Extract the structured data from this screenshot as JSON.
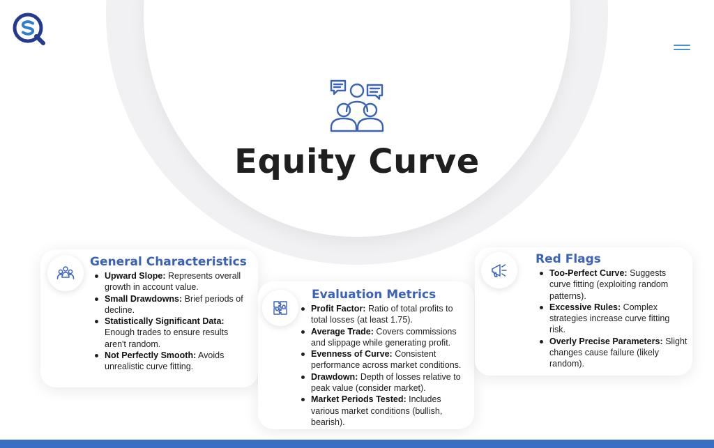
{
  "page": {
    "title": "Equity Curve",
    "accent_color": "#3a63b6",
    "footer_color": "#3a6fc4"
  },
  "header": {
    "logo": "brand-logo-icon",
    "menu": "hamburger-menu-icon",
    "hero_icon": "people-discussion-icon"
  },
  "cards": {
    "general": {
      "title": "General Characteristics",
      "icon": "people-group-icon",
      "items": [
        {
          "term": "Upward Slope:",
          "text": " Represents overall growth in account value."
        },
        {
          "term": "Small Drawdowns:",
          "text": " Brief periods of decline."
        },
        {
          "term": "Statistically Significant Data:",
          "text": " Enough trades to ensure results aren't random."
        },
        {
          "term": "Not Perfectly Smooth:",
          "text": " Avoids unrealistic curve fitting."
        }
      ]
    },
    "evaluation": {
      "title": "Evaluation Metrics",
      "icon": "puzzle-icon",
      "items": [
        {
          "term": "Profit Factor:",
          "text": " Ratio of total profits to total losses (at least 1.75)."
        },
        {
          "term": "Average Trade:",
          "text": " Covers commissions and slippage while generating profit."
        },
        {
          "term": "Evenness of Curve:",
          "text": " Consistent performance across market conditions."
        },
        {
          "term": "Drawdown:",
          "text": " Depth of losses relative to peak value (consider market)."
        },
        {
          "term": "Market Periods Tested:",
          "text": " Includes various market conditions (bullish, bearish)."
        }
      ]
    },
    "red_flags": {
      "title": "Red Flags",
      "icon": "megaphone-icon",
      "items": [
        {
          "term": "Too-Perfect Curve:",
          "text": " Suggests curve fitting (exploiting random patterns)."
        },
        {
          "term": "Excessive Rules:",
          "text": " Complex strategies increase curve fitting risk."
        },
        {
          "term": "Overly Precise Parameters:",
          "text": " Slight changes cause failure (likely random)."
        }
      ]
    }
  }
}
